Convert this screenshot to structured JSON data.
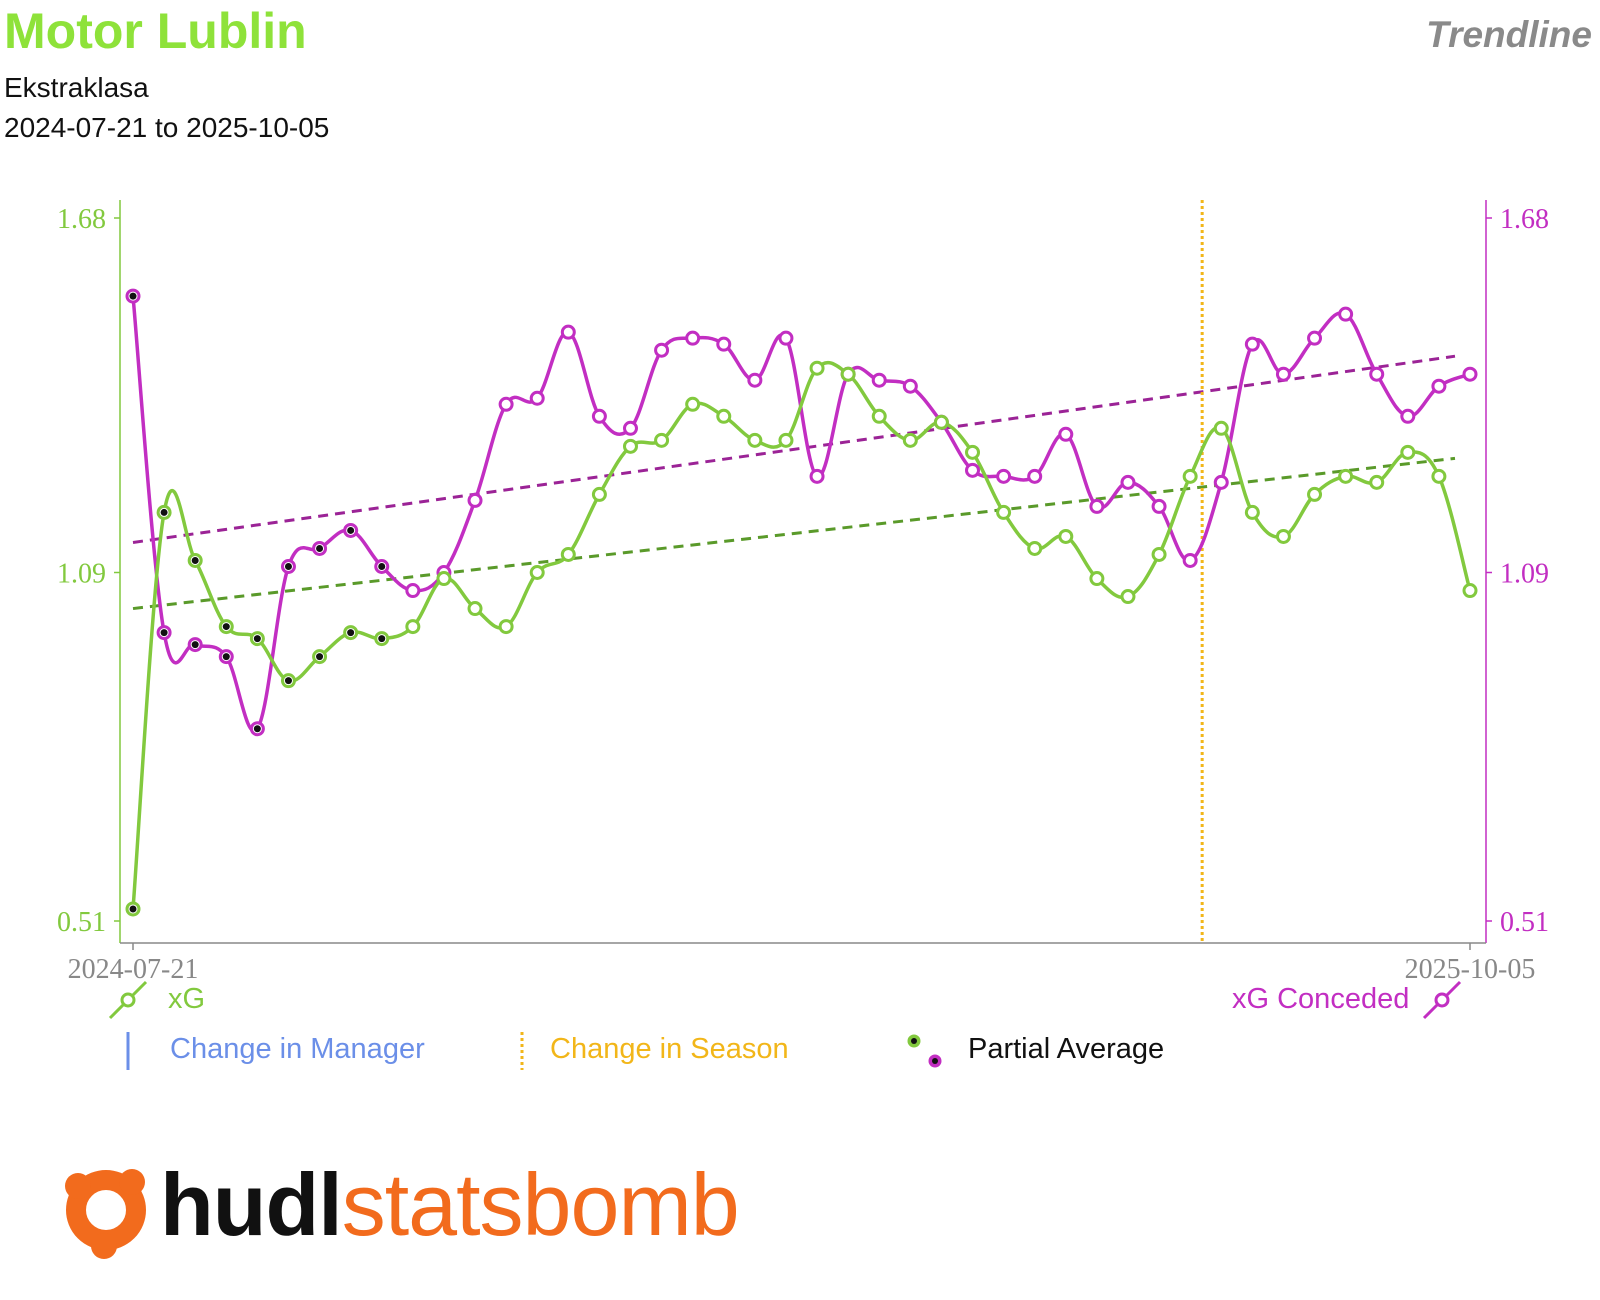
{
  "header": {
    "team": "Motor Lublin",
    "chart_kind": "Trendline",
    "competition": "Ekstraklasa",
    "date_range": "2024-07-21 to 2025-10-05"
  },
  "colors": {
    "xg": "#82c93e",
    "xg_trend": "#5a9a2a",
    "xg_conceded": "#c22ec2",
    "xg_conceded_trend": "#9b2396",
    "season_change": "#f2b619",
    "manager_change": "#6b8fe8",
    "axis": "#888888",
    "partial_dot": "#111111",
    "brand_orange": "#f26b1d"
  },
  "legend": {
    "xg": "xG",
    "xg_conceded": "xG Conceded",
    "manager": "Change in Manager",
    "season": "Change in Season",
    "partial": "Partial Average"
  },
  "logo": {
    "hudl": "hudl",
    "statsbomb": "statsbomb",
    "icon": "hudl-statsbomb-logo-icon"
  },
  "chart_data": {
    "type": "line",
    "x_start": "2024-07-21",
    "x_end": "2025-10-05",
    "x_tick_labels": [
      "2024-07-21",
      "2025-10-05"
    ],
    "left_axis": {
      "ticks": [
        1.68,
        1.09,
        0.51
      ],
      "range": [
        0.51,
        1.68
      ]
    },
    "right_axis": {
      "ticks": [
        1.68,
        1.09,
        0.51
      ],
      "range": [
        0.51,
        1.68
      ]
    },
    "season_change_match_index": 34,
    "grid": false,
    "series": [
      {
        "name": "xG",
        "axis": "left",
        "partial_count": 9,
        "values": [
          0.53,
          1.19,
          1.11,
          1.0,
          0.98,
          0.91,
          0.95,
          0.99,
          0.98,
          1.0,
          1.08,
          1.03,
          1.0,
          1.09,
          1.12,
          1.22,
          1.3,
          1.31,
          1.37,
          1.35,
          1.31,
          1.31,
          1.43,
          1.42,
          1.35,
          1.31,
          1.34,
          1.29,
          1.19,
          1.13,
          1.15,
          1.08,
          1.05,
          1.12,
          1.25,
          1.33,
          1.19,
          1.15,
          1.22,
          1.25,
          1.24,
          1.29,
          1.25,
          1.06
        ]
      },
      {
        "name": "xG Conceded",
        "axis": "right",
        "partial_count": 9,
        "values": [
          1.55,
          0.99,
          0.97,
          0.95,
          0.83,
          1.1,
          1.13,
          1.16,
          1.1,
          1.06,
          1.09,
          1.21,
          1.37,
          1.38,
          1.49,
          1.35,
          1.33,
          1.46,
          1.48,
          1.47,
          1.41,
          1.48,
          1.25,
          1.42,
          1.41,
          1.4,
          1.34,
          1.26,
          1.25,
          1.25,
          1.32,
          1.2,
          1.24,
          1.2,
          1.11,
          1.24,
          1.47,
          1.42,
          1.48,
          1.52,
          1.42,
          1.35,
          1.4,
          1.42
        ]
      }
    ],
    "trendlines": [
      {
        "series": "xG",
        "start": 1.03,
        "end": 1.28
      },
      {
        "series": "xG Conceded",
        "start": 1.14,
        "end": 1.45
      }
    ]
  }
}
